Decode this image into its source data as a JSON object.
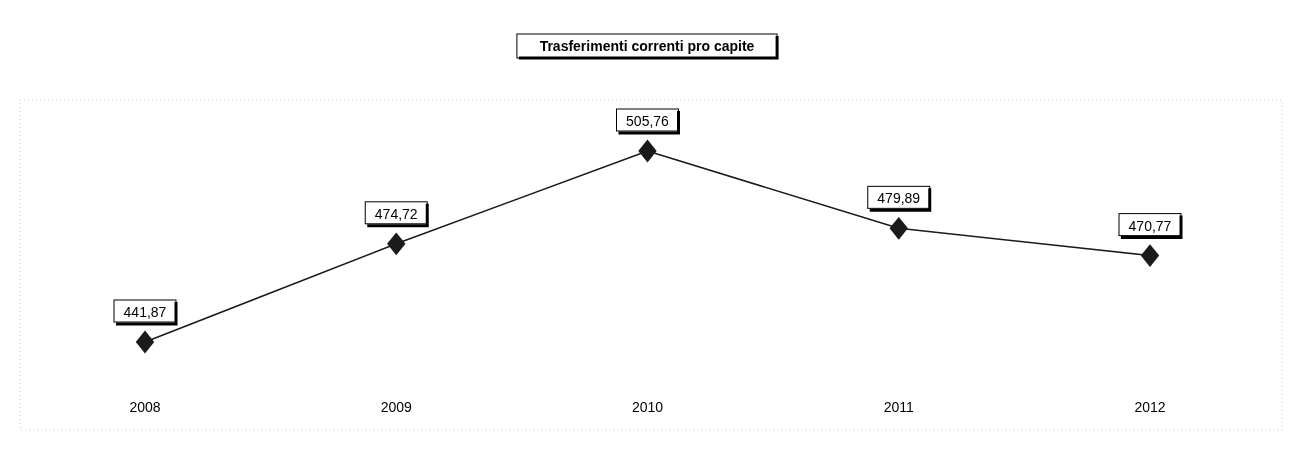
{
  "chart_data": {
    "type": "line",
    "title": "Trasferimenti correnti pro capite",
    "categories": [
      "2008",
      "2009",
      "2010",
      "2011",
      "2012"
    ],
    "series": [
      {
        "color": "#1a1a1a",
        "values": [
          441.87,
          474.72,
          505.76,
          479.89,
          470.77
        ],
        "value_labels": [
          "441,87",
          "474,72",
          "505,76",
          "479,89",
          "470,77"
        ]
      }
    ],
    "marker": "diamond",
    "line_style": "solid"
  }
}
